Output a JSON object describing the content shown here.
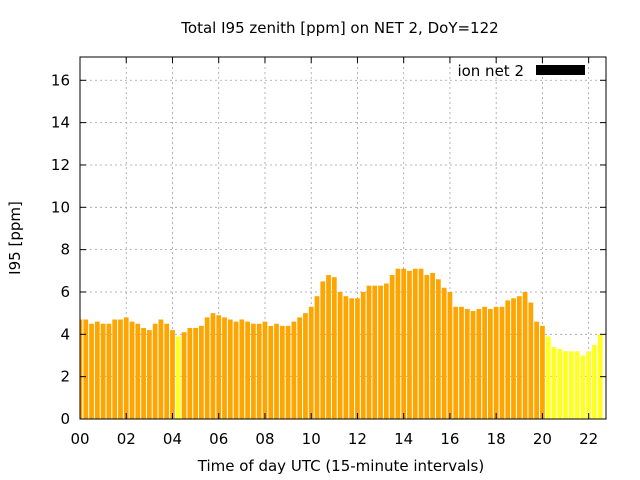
{
  "chart_data": {
    "type": "bar",
    "title": "Total I95 zenith [ppm] on NET 2, DoY=122",
    "xlabel": "Time of day UTC (15-minute intervals)",
    "ylabel": "I95 [ppm]",
    "xlim": [
      0,
      22.75
    ],
    "ylim": [
      0,
      17.1
    ],
    "x_ticks": [
      "00",
      "02",
      "04",
      "06",
      "08",
      "10",
      "12",
      "14",
      "16",
      "18",
      "20",
      "22"
    ],
    "y_ticks": [
      "0",
      "2",
      "4",
      "6",
      "8",
      "10",
      "12",
      "14",
      "16"
    ],
    "grid": true,
    "legend": {
      "label": "ion net 2",
      "color": "#000000",
      "placement": "top-right"
    },
    "bar_colors": {
      "normal": "#ffa500",
      "low": "#ffff22"
    },
    "series": [
      {
        "interval_hours": 0.25,
        "values": [
          4.7,
          4.7,
          4.5,
          4.6,
          4.5,
          4.5,
          4.7,
          4.7,
          4.8,
          4.6,
          4.5,
          4.3,
          4.2,
          4.5,
          4.7,
          4.5,
          4.2,
          3.9,
          4.1,
          4.3,
          4.3,
          4.4,
          4.8,
          5.0,
          4.9,
          4.8,
          4.7,
          4.6,
          4.7,
          4.6,
          4.5,
          4.5,
          4.6,
          4.4,
          4.5,
          4.4,
          4.4,
          4.6,
          4.8,
          5.0,
          5.3,
          5.8,
          6.5,
          6.8,
          6.7,
          6.0,
          5.8,
          5.7,
          5.7,
          6.0,
          6.3,
          6.3,
          6.3,
          6.4,
          6.8,
          7.1,
          7.1,
          7.0,
          7.1,
          7.1,
          6.8,
          6.9,
          6.6,
          6.2,
          6.0,
          5.3,
          5.3,
          5.2,
          5.1,
          5.2,
          5.3,
          5.2,
          5.3,
          5.3,
          5.6,
          5.7,
          5.8,
          6.0,
          5.5,
          4.6,
          4.4,
          3.9,
          3.4,
          3.3,
          3.2,
          3.2,
          3.2,
          3.0,
          3.2,
          3.5,
          4.0
        ],
        "yellow_indices": [
          17,
          81,
          82,
          83,
          84,
          85,
          86,
          87,
          88,
          89,
          90
        ]
      }
    ]
  }
}
